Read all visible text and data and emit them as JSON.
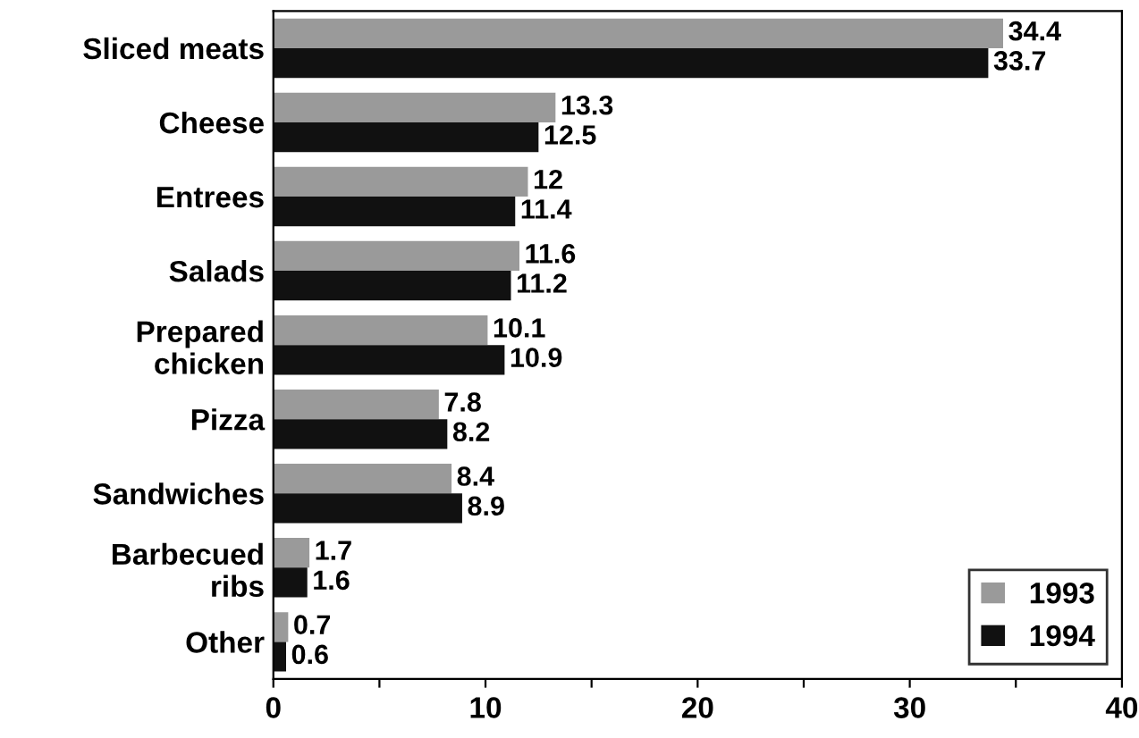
{
  "chart_data": {
    "type": "bar",
    "orientation": "horizontal",
    "categories": [
      "Sliced meats",
      "Cheese",
      "Entrees",
      "Salads",
      "Prepared\nchicken",
      "Pizza",
      "Sandwiches",
      "Barbecued\nribs",
      "Other"
    ],
    "series": [
      {
        "name": "1993",
        "color": "#9a9a9a",
        "values": [
          34.4,
          13.3,
          12,
          11.6,
          10.1,
          7.8,
          8.4,
          1.7,
          0.7
        ]
      },
      {
        "name": "1994",
        "color": "#111111",
        "values": [
          33.7,
          12.5,
          11.4,
          11.2,
          10.9,
          8.2,
          8.9,
          1.6,
          0.6
        ]
      }
    ],
    "xlim": [
      0,
      40
    ],
    "xticks": [
      0,
      {
        "value": 5,
        "label": null
      },
      10,
      {
        "value": 15,
        "label": null
      },
      20,
      {
        "value": 25,
        "label": null
      },
      30,
      {
        "value": 35,
        "label": null
      },
      40
    ],
    "data_labels": true,
    "legend": "bottom right",
    "grid": false
  }
}
